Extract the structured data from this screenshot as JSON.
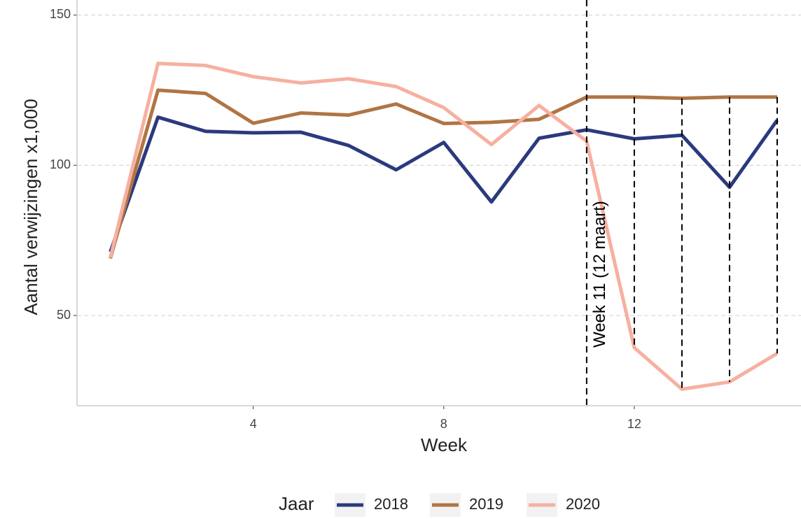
{
  "chart_data": {
    "type": "line",
    "x_label": "Week",
    "y_label": "Aantal verwijzingen x1,000",
    "legend_title": "Jaar",
    "legend_position": "bottom",
    "x": [
      1,
      2,
      3,
      4,
      5,
      6,
      7,
      8,
      9,
      10,
      11,
      12,
      13,
      14,
      15
    ],
    "series": [
      {
        "name": "2018",
        "color": "#2b3a7e",
        "values": [
          71.2,
          116,
          111.3,
          110.8,
          111,
          106.6,
          98.5,
          107.6,
          87.8,
          109,
          111.8,
          108.8,
          110,
          92.7,
          115
        ]
      },
      {
        "name": "2019",
        "color": "#b07545",
        "values": [
          69,
          125,
          123.9,
          114,
          117.4,
          116.7,
          120.4,
          113.9,
          114.3,
          115.3,
          122.7,
          122.7,
          122.3,
          122.7,
          122.7
        ]
      },
      {
        "name": "2020",
        "color": "#f6b0a0",
        "values": [
          69.3,
          133.9,
          133.2,
          129.5,
          127.4,
          128.8,
          126.2,
          119.2,
          106.9,
          119.9,
          108,
          39.3,
          25.5,
          27.9,
          37.4
        ]
      }
    ],
    "annotation": {
      "text": "Week 11 (12 maart)",
      "x": 11
    },
    "xlim": [
      0.3,
      15.5
    ],
    "xticks": [
      4,
      8,
      12
    ],
    "ylim": [
      20,
      155
    ],
    "yticks": [
      50,
      100,
      150
    ],
    "grid": true
  }
}
